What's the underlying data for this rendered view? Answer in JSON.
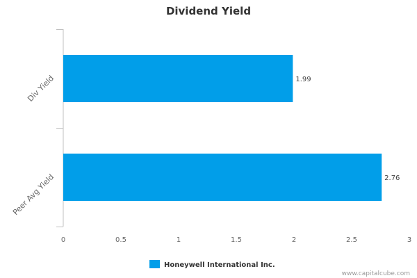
{
  "chart_data": {
    "type": "bar",
    "orientation": "horizontal",
    "title": "Dividend Yield",
    "categories": [
      "Div Yield",
      "Peer Avg Yield"
    ],
    "series": [
      {
        "name": "Honeywell International Inc.",
        "values": [
          1.99,
          2.76
        ],
        "color": "#019ee9"
      }
    ],
    "data_labels": [
      "1.99",
      "2.76"
    ],
    "xlim": [
      0,
      3
    ],
    "x_ticks": [
      0,
      0.5,
      1,
      1.5,
      2,
      2.5,
      3
    ],
    "x_tick_labels": [
      "0",
      "0.5",
      "1",
      "1.5",
      "2",
      "2.5",
      "3"
    ],
    "grid": false,
    "legend_position": "bottom-center"
  },
  "watermark": "www.capitalcube.com"
}
